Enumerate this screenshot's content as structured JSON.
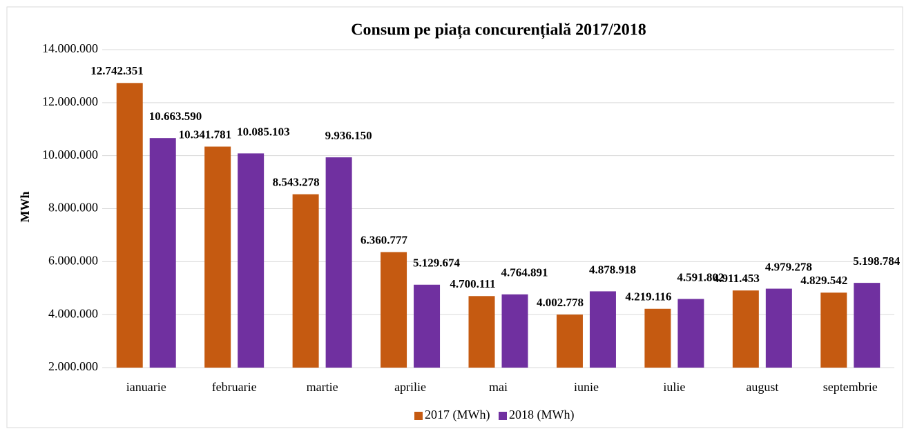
{
  "chart_data": {
    "type": "bar",
    "title": "Consum pe piața concurențială 2017/2018",
    "y_label": "MWh",
    "categories": [
      "ianuarie",
      "februarie",
      "martie",
      "aprilie",
      "mai",
      "iunie",
      "iulie",
      "august",
      "septembrie"
    ],
    "series": [
      {
        "name": "2017 (MWh)",
        "color": "#c55a11",
        "values": [
          12742351,
          10341781,
          8543278,
          6360777,
          4700111,
          4002778,
          4219116,
          4911453,
          4829542
        ],
        "value_labels": [
          "12.742.351",
          "10.341.781",
          "8.543.278",
          "6.360.777",
          "4.700.111",
          "4.002.778",
          "4.219.116",
          "4.911.453",
          "4.829.542"
        ]
      },
      {
        "name": "2018 (MWh)",
        "color": "#7030a0",
        "values": [
          10663590,
          10085103,
          9936150,
          5129674,
          4764891,
          4878918,
          4591802,
          4979278,
          5198784
        ],
        "value_labels": [
          "10.663.590",
          "10.085.103",
          "9.936.150",
          "5.129.674",
          "4.764.891",
          "4.878.918",
          "4.591.802",
          "4.979.278",
          "5.198.784"
        ]
      }
    ],
    "ylim": [
      2000000,
      14000000
    ],
    "yticks": [
      {
        "value": 2000000,
        "label": "2.000.000"
      },
      {
        "value": 4000000,
        "label": "4.000.000"
      },
      {
        "value": 6000000,
        "label": "6.000.000"
      },
      {
        "value": 8000000,
        "label": "8.000.000"
      },
      {
        "value": 10000000,
        "label": "10.000.000"
      },
      {
        "value": 12000000,
        "label": "12.000.000"
      },
      {
        "value": 14000000,
        "label": "14.000.000"
      }
    ],
    "grid": true,
    "legend": "bottom"
  }
}
